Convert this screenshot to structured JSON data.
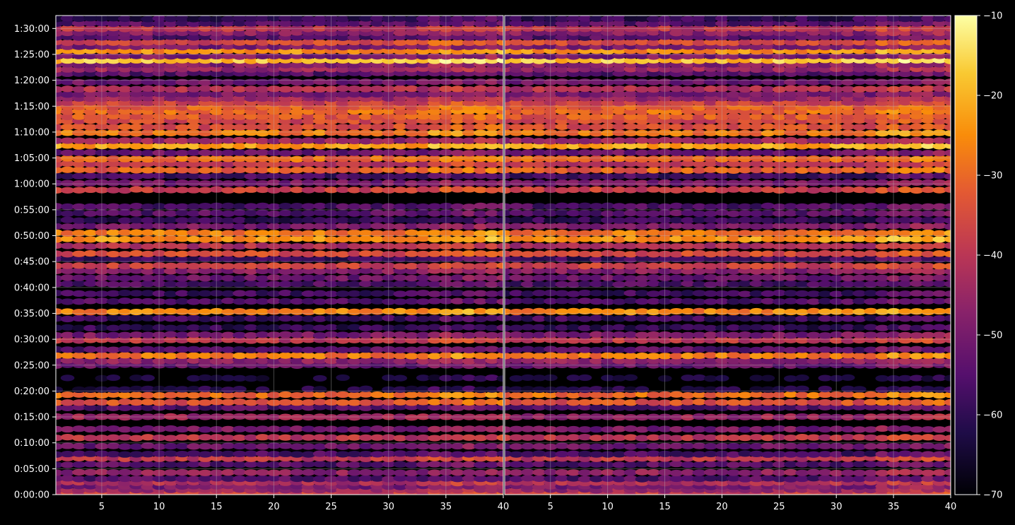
{
  "chart_data": {
    "type": "heatmap",
    "panels": 2,
    "x_ticks": [
      "5",
      "10",
      "15",
      "20",
      "25",
      "30",
      "35",
      "40"
    ],
    "x_tick_values": [
      5,
      10,
      15,
      20,
      25,
      30,
      35,
      40
    ],
    "xlim": [
      1,
      40
    ],
    "y_ticks": [
      "0:00:00",
      "0:05:00",
      "0:10:00",
      "0:15:00",
      "0:20:00",
      "0:25:00",
      "0:30:00",
      "0:35:00",
      "0:40:00",
      "0:45:00",
      "0:50:00",
      "0:55:00",
      "1:00:00",
      "1:05:00",
      "1:10:00",
      "1:15:00",
      "1:20:00",
      "1:25:00",
      "1:30:00"
    ],
    "y_tick_values_seconds": [
      0,
      300,
      600,
      900,
      1200,
      1500,
      1800,
      2100,
      2400,
      2700,
      3000,
      3300,
      3600,
      3900,
      4200,
      4500,
      4800,
      5100,
      5400
    ],
    "ylim_seconds": [
      0,
      5550
    ],
    "grid": true,
    "colorbar": {
      "ticks": [
        "−70",
        "−60",
        "−50",
        "−40",
        "−30",
        "−20",
        "−10"
      ],
      "tick_values": [
        -70,
        -60,
        -50,
        -40,
        -30,
        -20,
        -10
      ],
      "range": [
        -70,
        -10
      ],
      "colormap": "inferno"
    },
    "bands": [
      {
        "t": 20,
        "level": -38
      },
      {
        "t": 55,
        "level": -45
      },
      {
        "t": 95,
        "level": -50
      },
      {
        "t": 140,
        "level": -42
      },
      {
        "t": 185,
        "level": -55
      },
      {
        "t": 255,
        "level": -47
      },
      {
        "t": 350,
        "level": -55
      },
      {
        "t": 420,
        "level": -40
      },
      {
        "t": 470,
        "level": -57
      },
      {
        "t": 560,
        "level": -52
      },
      {
        "t": 660,
        "level": -40
      },
      {
        "t": 760,
        "level": -50
      },
      {
        "t": 900,
        "level": -45
      },
      {
        "t": 1010,
        "level": -55
      },
      {
        "t": 1070,
        "level": -34
      },
      {
        "t": 1155,
        "level": -30
      },
      {
        "t": 1220,
        "level": -63
      },
      {
        "t": 1350,
        "level": -65
      },
      {
        "t": 1500,
        "level": -53
      },
      {
        "t": 1550,
        "level": -47
      },
      {
        "t": 1610,
        "level": -28
      },
      {
        "t": 1680,
        "level": -55
      },
      {
        "t": 1790,
        "level": -40
      },
      {
        "t": 1850,
        "level": -50
      },
      {
        "t": 1935,
        "level": -60
      },
      {
        "t": 2040,
        "level": -58
      },
      {
        "t": 2120,
        "level": -26
      },
      {
        "t": 2240,
        "level": -56
      },
      {
        "t": 2330,
        "level": -58
      },
      {
        "t": 2440,
        "level": -56
      },
      {
        "t": 2510,
        "level": -52
      },
      {
        "t": 2590,
        "level": -48
      },
      {
        "t": 2650,
        "level": -38
      },
      {
        "t": 2730,
        "level": -58
      },
      {
        "t": 2790,
        "level": -36
      },
      {
        "t": 2880,
        "level": -42
      },
      {
        "t": 2960,
        "level": -24
      },
      {
        "t": 3030,
        "level": -28
      },
      {
        "t": 3110,
        "level": -50
      },
      {
        "t": 3180,
        "level": -60
      },
      {
        "t": 3260,
        "level": -55
      },
      {
        "t": 3340,
        "level": -56
      },
      {
        "t": 3530,
        "level": -38
      },
      {
        "t": 3610,
        "level": -50
      },
      {
        "t": 3690,
        "level": -58
      },
      {
        "t": 3760,
        "level": -32
      },
      {
        "t": 3830,
        "level": -40
      },
      {
        "t": 3890,
        "level": -30
      },
      {
        "t": 3960,
        "level": -52
      },
      {
        "t": 4040,
        "level": -22
      },
      {
        "t": 4100,
        "level": -45
      },
      {
        "t": 4190,
        "level": -28
      },
      {
        "t": 4260,
        "level": -35
      },
      {
        "t": 4330,
        "level": -36
      },
      {
        "t": 4380,
        "level": -33
      },
      {
        "t": 4440,
        "level": -30
      },
      {
        "t": 4490,
        "level": -32
      },
      {
        "t": 4540,
        "level": -38
      },
      {
        "t": 4590,
        "level": -45
      },
      {
        "t": 4640,
        "level": -50
      },
      {
        "t": 4700,
        "level": -42
      },
      {
        "t": 4780,
        "level": -52
      },
      {
        "t": 4880,
        "level": -55
      },
      {
        "t": 4930,
        "level": -45
      },
      {
        "t": 4980,
        "level": -48
      },
      {
        "t": 5030,
        "level": -18
      },
      {
        "t": 5080,
        "level": -50
      },
      {
        "t": 5140,
        "level": -25
      },
      {
        "t": 5190,
        "level": -50
      },
      {
        "t": 5240,
        "level": -36
      },
      {
        "t": 5300,
        "level": -55
      },
      {
        "t": 5350,
        "level": -48
      },
      {
        "t": 5400,
        "level": -40
      },
      {
        "t": 5460,
        "level": -55
      },
      {
        "t": 5515,
        "level": -60
      }
    ]
  }
}
